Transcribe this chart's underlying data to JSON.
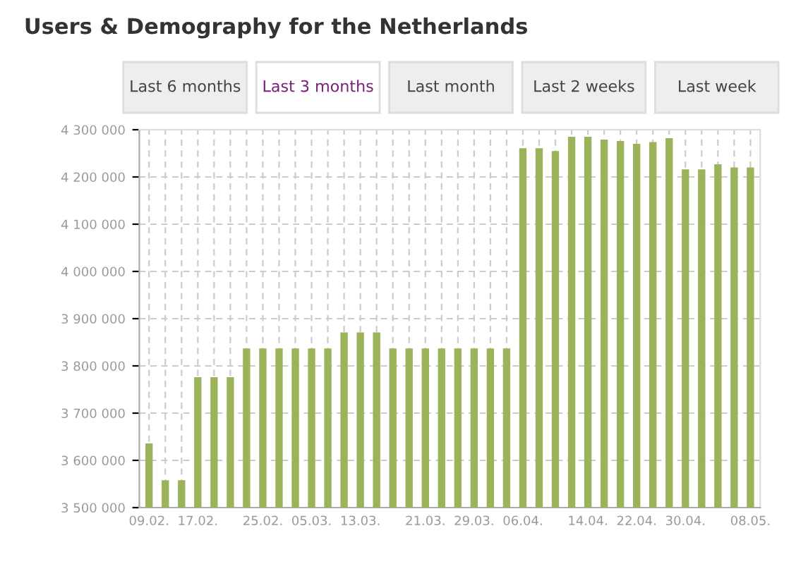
{
  "chart_data": {
    "type": "bar",
    "title": "Users & Demography for the Netherlands",
    "annotations": [
      "Last 6 months",
      "Last 3 months",
      "Last month",
      "Last 2 weeks",
      "Last week"
    ],
    "categories": [
      "09.02.",
      null,
      null,
      "17.02.",
      null,
      null,
      null,
      "25.02.",
      null,
      null,
      "05.03.",
      null,
      null,
      "13.03.",
      null,
      null,
      null,
      "21.03.",
      null,
      null,
      "29.03.",
      null,
      null,
      "06.04.",
      null,
      null,
      null,
      "14.04.",
      null,
      null,
      "22.04.",
      null,
      null,
      "30.04.",
      null,
      null,
      null,
      "08.05."
    ],
    "series": [
      {
        "color": "#9bb35a",
        "values": [
          3636000,
          3558000,
          3558000,
          3776000,
          3776000,
          3776000,
          3837000,
          3837000,
          3837000,
          3837000,
          3837000,
          3837000,
          3871000,
          3871000,
          3871000,
          3837000,
          3837000,
          3837000,
          3837000,
          3837000,
          3837000,
          3837000,
          3837000,
          4261000,
          4261000,
          4255000,
          4285000,
          4285000,
          4279000,
          4276000,
          4270000,
          4274000,
          4282000,
          4216000,
          4216000,
          4227000,
          4220000,
          4220000
        ]
      }
    ],
    "ylim": [
      3500000,
      4300000
    ],
    "yticks": [
      {
        "value": 3500000,
        "label": "3 500 000"
      },
      {
        "value": 3600000,
        "label": "3 600 000"
      },
      {
        "value": 3700000,
        "label": "3 700 000"
      },
      {
        "value": 3800000,
        "label": "3 800 000"
      },
      {
        "value": 3900000,
        "label": "3 900 000"
      },
      {
        "value": 4000000,
        "label": "4 000 000"
      },
      {
        "value": 4100000,
        "label": "4 100 000"
      },
      {
        "value": 4200000,
        "label": "4 200 000"
      },
      {
        "value": 4300000,
        "label": "4 300 000"
      }
    ],
    "grid": true
  }
}
